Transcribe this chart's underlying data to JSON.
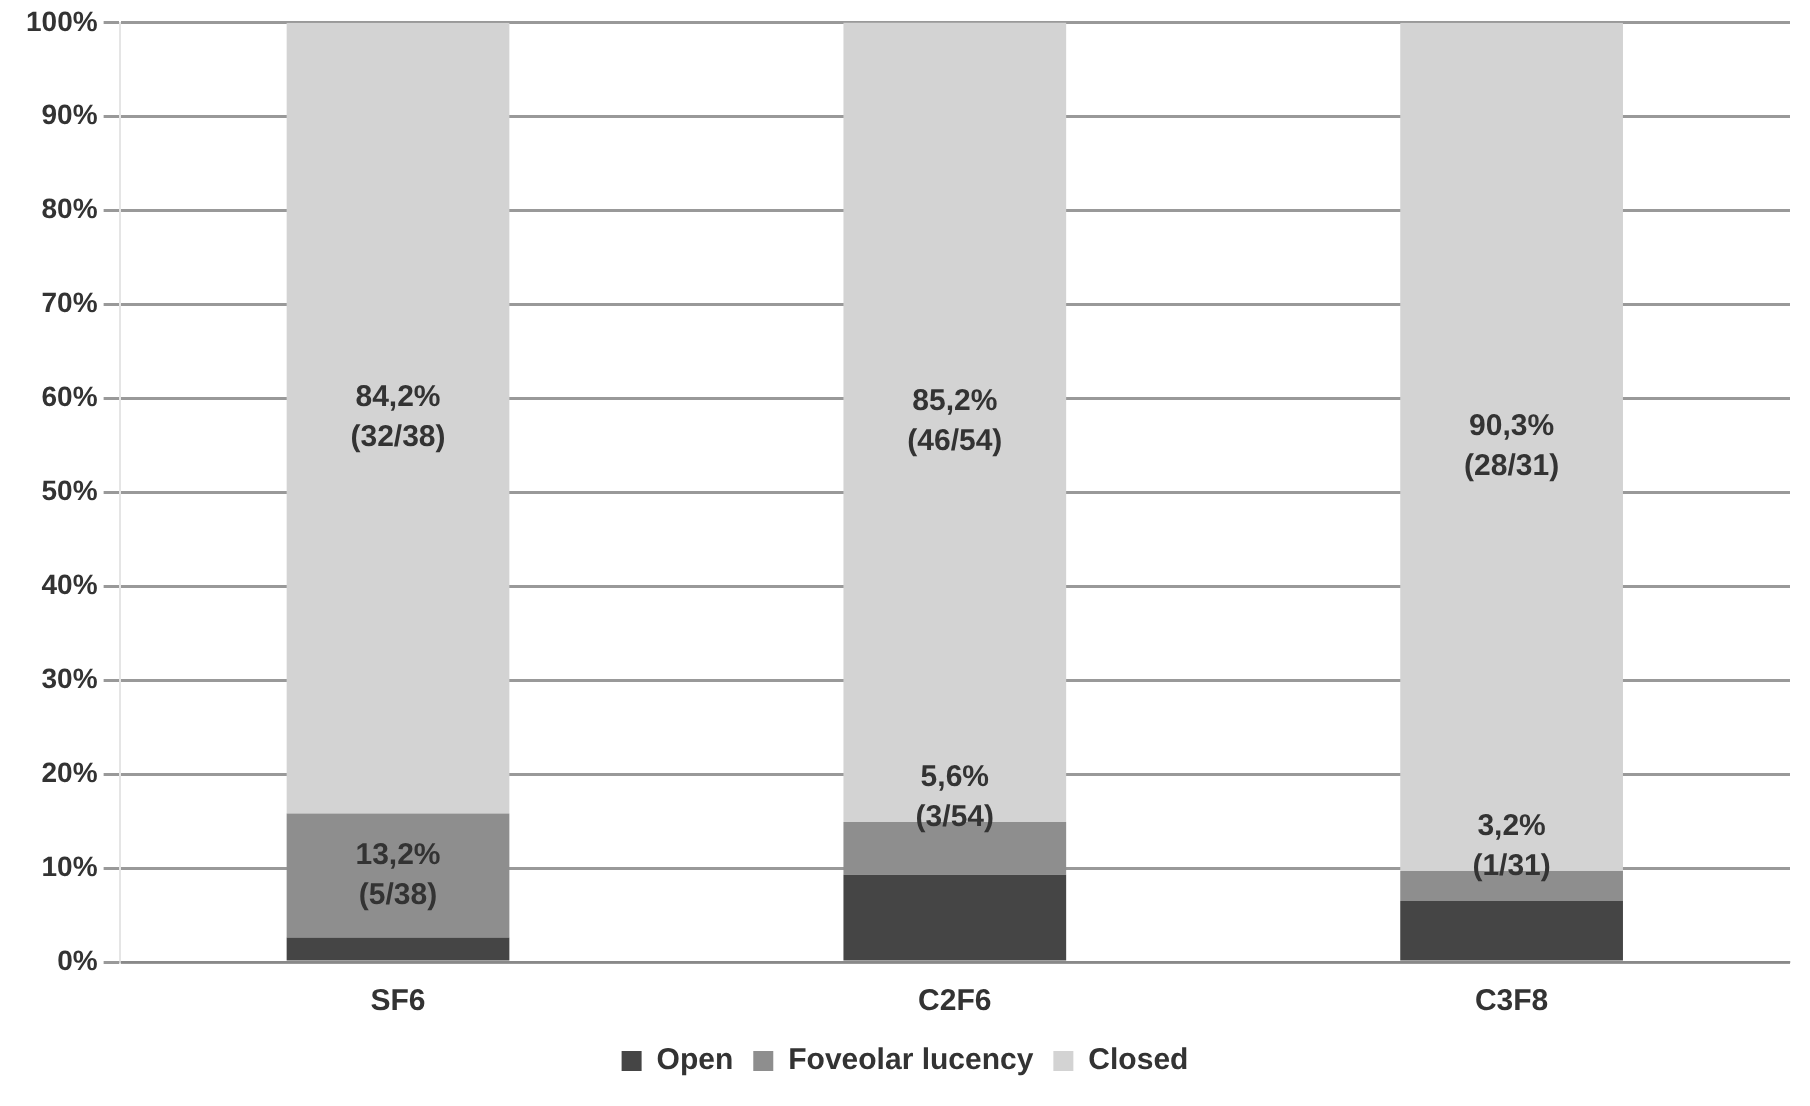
{
  "chart_data": {
    "type": "bar",
    "stacked": true,
    "categories": [
      "SF6",
      "C2F6",
      "C3F8"
    ],
    "series": [
      {
        "name": "Open",
        "color": "#454545",
        "values": [
          2.6,
          9.3,
          6.5
        ]
      },
      {
        "name": "Foveolar lucency",
        "color": "#8e8e8e",
        "values": [
          13.2,
          5.6,
          3.2
        ],
        "value_labels": [
          "13,2% (5/38)",
          "5,6% (3/54)",
          "3,2% (1/31)"
        ]
      },
      {
        "name": "Closed",
        "color": "#d3d3d3",
        "values": [
          84.2,
          85.2,
          90.3
        ],
        "value_labels": [
          "84,2% (32/38)",
          "85,2% (46/54)",
          "90,3% (28/31)"
        ]
      }
    ],
    "ylim": [
      0,
      100
    ],
    "yticks": [
      {
        "value": 0,
        "label": "0%"
      },
      {
        "value": 10,
        "label": "10%"
      },
      {
        "value": 20,
        "label": "20%"
      },
      {
        "value": 30,
        "label": "30%"
      },
      {
        "value": 40,
        "label": "40%"
      },
      {
        "value": 50,
        "label": "50%"
      },
      {
        "value": 60,
        "label": "60%"
      },
      {
        "value": 70,
        "label": "70%"
      },
      {
        "value": 80,
        "label": "80%"
      },
      {
        "value": 90,
        "label": "90%"
      },
      {
        "value": 100,
        "label": "100%"
      }
    ],
    "grid": "y",
    "legend": "bottom"
  }
}
